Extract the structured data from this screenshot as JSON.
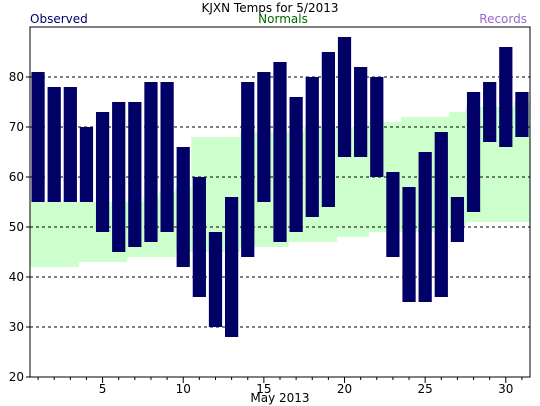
{
  "chart_data": {
    "type": "bar",
    "title": "KJXN Temps for 5/2013",
    "xlabel": "May 2013",
    "ylabel": "",
    "ylim": [
      20,
      90
    ],
    "xlim": [
      0.5,
      31.5
    ],
    "grid": true,
    "yticks": [
      20,
      30,
      40,
      50,
      60,
      70,
      80
    ],
    "xticks": [
      5,
      10,
      15,
      20,
      25,
      30
    ],
    "legend": [
      {
        "label": "Observed",
        "color": "#000066",
        "position": "top-left"
      },
      {
        "label": "Normals",
        "color": "#006600",
        "position": "top-center"
      },
      {
        "label": "Records",
        "color": "#9966cc",
        "position": "top-right"
      }
    ],
    "colors": {
      "observed_bar": "#000066",
      "normals_band": "#ccffcc",
      "grid": "#000000",
      "axis": "#000000"
    },
    "days": [
      1,
      2,
      3,
      4,
      5,
      6,
      7,
      8,
      9,
      10,
      11,
      12,
      13,
      14,
      15,
      16,
      17,
      18,
      19,
      20,
      21,
      22,
      23,
      24,
      25,
      26,
      27,
      28,
      29,
      30,
      31
    ],
    "series": [
      {
        "name": "Observed",
        "high": [
          81,
          78,
          78,
          70,
          73,
          75,
          75,
          79,
          79,
          66,
          60,
          49,
          56,
          79,
          81,
          83,
          76,
          80,
          85,
          88,
          82,
          80,
          61,
          58,
          65,
          69,
          56,
          77,
          79,
          86,
          77
        ],
        "low": [
          55,
          55,
          55,
          55,
          49,
          45,
          46,
          47,
          49,
          42,
          36,
          30,
          28,
          44,
          55,
          47,
          49,
          52,
          54,
          64,
          64,
          60,
          44,
          35,
          35,
          36,
          47,
          53,
          67,
          66,
          68
        ]
      },
      {
        "name": "Normals",
        "high": [
          55,
          55,
          55,
          55,
          55,
          55,
          55,
          56,
          57,
          58,
          68,
          68,
          68,
          69,
          69,
          69,
          69,
          70,
          70,
          70,
          70,
          71,
          71,
          72,
          72,
          72,
          73,
          74,
          74,
          74,
          75
        ],
        "low": [
          42,
          42,
          42,
          43,
          43,
          43,
          44,
          44,
          44,
          45,
          45,
          45,
          45,
          46,
          46,
          46,
          47,
          47,
          47,
          48,
          48,
          49,
          49,
          49,
          49,
          50,
          50,
          51,
          51,
          51,
          51
        ]
      }
    ]
  }
}
